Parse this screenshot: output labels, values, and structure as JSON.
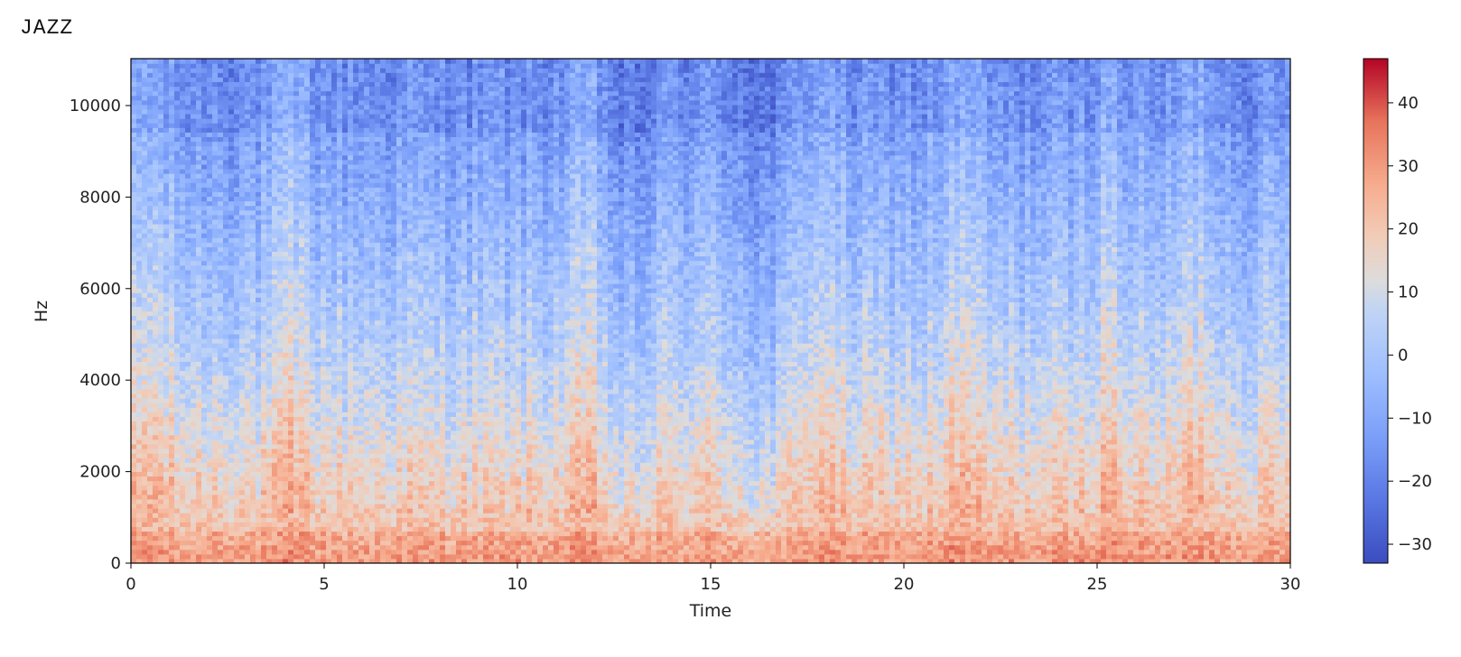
{
  "page": {
    "title": "JAZZ"
  },
  "chart_data": {
    "type": "heatmap",
    "title": "",
    "xlabel": "Time",
    "ylabel": "Hz",
    "xlim": [
      0,
      30
    ],
    "ylim": [
      0,
      11025
    ],
    "x_ticks": [
      0,
      5,
      10,
      15,
      20,
      25,
      30
    ],
    "y_ticks": [
      0,
      2000,
      4000,
      6000,
      8000,
      10000
    ],
    "colorbar": {
      "colormap": "coolwarm",
      "range": [
        -33,
        47
      ],
      "ticks": [
        -30,
        -20,
        -10,
        0,
        10,
        20,
        30,
        40
      ],
      "tick_labels": [
        "−30",
        "−20",
        "−10",
        "0",
        "10",
        "20",
        "30",
        "40"
      ]
    },
    "grid": false,
    "description_values": {
      "low_freq_band_db": 30,
      "mid_freq_band_db": 5,
      "high_freq_band_db": -18
    },
    "loud_time_regions": [
      0.5,
      4.2,
      11.9,
      17.8,
      21.5,
      25.3,
      27.6
    ],
    "quiet_time_regions": [
      12.8,
      16.4
    ]
  }
}
